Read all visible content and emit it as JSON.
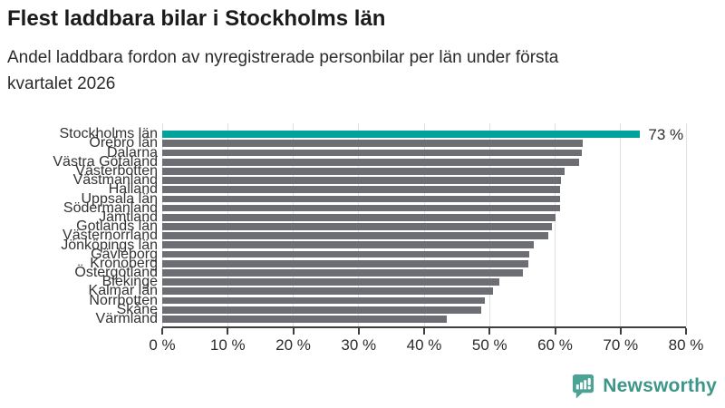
{
  "title": "Flest laddbara bilar i Stockholms län",
  "subtitle": "Andel laddbara fordon av nyregistrerade personbilar per län under första\nkvartalet 2026",
  "chart_data": {
    "type": "bar",
    "orientation": "horizontal",
    "title": "Flest laddbara bilar i Stockholms län",
    "subtitle": "Andel laddbara fordon av nyregistrerade personbilar per län under första kvartalet 2026",
    "categories": [
      "Stockholms län",
      "Örebro län",
      "Dalarna",
      "Västra Götaland",
      "Västerbotten",
      "Västmanland",
      "Halland",
      "Uppsala län",
      "Södermanland",
      "Jämtland",
      "Gotlands län",
      "Västernorrland",
      "Jönköpings län",
      "Gävleborg",
      "Kronoberg",
      "Östergötland",
      "Blekinge",
      "Kalmar län",
      "Norrbotten",
      "Skåne",
      "Värmland"
    ],
    "values": [
      73,
      64.2,
      64.1,
      63.7,
      61.4,
      60.9,
      60.8,
      60.8,
      60.8,
      60.1,
      59.5,
      58.9,
      56.7,
      56.1,
      55.9,
      55.1,
      51.5,
      50.5,
      49.3,
      48.7,
      43.4
    ],
    "unit": "%",
    "xlim": [
      0,
      80
    ],
    "x_ticks": [
      "0 %",
      "10 %",
      "20 %",
      "30 %",
      "40 %",
      "50 %",
      "60 %",
      "70 %",
      "80 %"
    ],
    "grid": true,
    "highlight_index": 0,
    "highlight_color": "#00a39b",
    "bar_color": "#6d6d74",
    "value_label": "73 %",
    "value_label_index": 0,
    "legend": "none"
  },
  "footer": {
    "logo_text": "Newsworthy",
    "logo_icon": "newsworthy-speech-bubble-chart-icon",
    "logo_text_color": "#3d9688",
    "logo_icon_color": "#4aa394"
  },
  "colors": {
    "background": "#ffffff",
    "title": "#1b1b1b",
    "subtitle": "#2b2b2b",
    "axis": "#3f3f3f",
    "gridline": "#e2e2e2",
    "tick_label": "#2d2d2d",
    "category_label": "#333333"
  }
}
